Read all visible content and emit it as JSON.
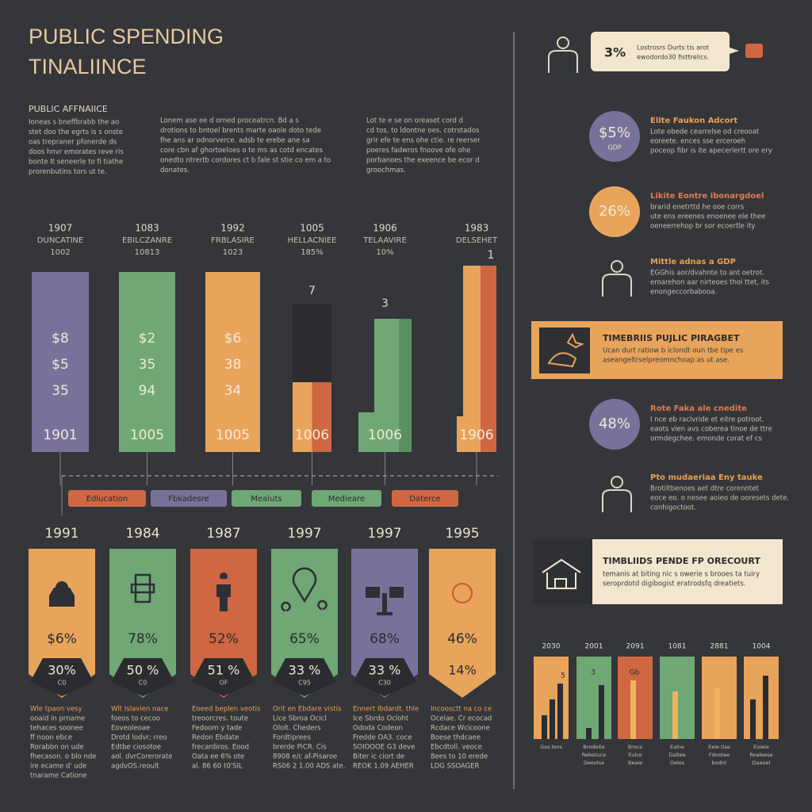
{
  "header": {
    "title_line1": "PUBLIC SPENDING",
    "title_line2": "TINALIINCE"
  },
  "intro": {
    "heading": "PUBLIC AFFNAIICE",
    "columns": [
      [
        "Ioneas s bneffbrabb the ao",
        "stet doo the egrts is s onste",
        "oas trepraner pfonerde ds",
        "doos hnvr emorates reve ris",
        "bonte It seneerle to fi tiathe",
        "prorenbutins tors ut te."
      ],
      [
        "Lonem ase ee d orned proceatrcn. Bd a s",
        "drotions to bntoel brents marte oaole doto tede",
        "fhe ans ar odnorverce. adsb te erebe ane sa",
        "core cbn af ghortoeloes o te ms as cotd encates",
        "onedto ntrertb cordores ct b fale st stie co em a to",
        "donates."
      ],
      [
        "Lot te e se on oreaset cord d",
        "cd tos, to ldontne oes. cotrstados",
        "grir efe te ens ohe ctie. re reerser",
        "poeres fadwros fnoove ofe ohe",
        "porbanoes the exeence be ecor d",
        "groochmas."
      ]
    ]
  },
  "top_columns": [
    {
      "year": "1907",
      "label": "DUNCATINE",
      "sub": "1002",
      "lines": [
        "$8",
        "$5",
        "35"
      ],
      "bottom": "1901"
    },
    {
      "year": "1083",
      "label": "EBILCZANRE",
      "sub": "10813",
      "lines": [
        "$2",
        "35",
        "94"
      ],
      "bottom": "1005"
    },
    {
      "year": "1992",
      "label": "FRBLASIRE",
      "sub": "1023",
      "lines": [
        "$6",
        "38",
        "34"
      ],
      "bottom": "1005"
    },
    {
      "year": "1005",
      "label": "HELLACNIEE",
      "sub": "185%",
      "top": "7",
      "bottom": "1006"
    },
    {
      "year": "1906",
      "label": "TELAAVIRE",
      "sub": "10%",
      "top": "3",
      "bottom": "1006"
    },
    {
      "year": "1983",
      "label": "DELSEHET",
      "top": "1",
      "bottom": "1906"
    }
  ],
  "categories": [
    "Edlucation",
    "Fbkadesre",
    "Mealuts",
    "Medieare",
    "Daterce"
  ],
  "cards": [
    {
      "year": "1991",
      "percent": "$6%",
      "badge": "30%",
      "badge_sub": "C0",
      "text": [
        "Wle tpaon vesy",
        "ooaid in prname",
        "tehaces soonee",
        "ff noon ebce",
        "Rorabbn on ude",
        "fhecason. o blo nde",
        "ire ecame d' ude",
        "tnarame Catione"
      ]
    },
    {
      "year": "1984",
      "percent": "78%",
      "badge": "50 %",
      "badge_sub": "C0",
      "text": [
        "Wlt Islavien nace",
        "foeos to cecoo",
        "Eoveoleoae",
        "Drotd lodvr; rreo",
        "Edtbe ciosotoe",
        "aol. dvrCorerorate",
        "agdvOS.reoult"
      ]
    },
    {
      "year": "1987",
      "percent": "52%",
      "badge": "51 %",
      "badge_sub": "OF",
      "text": [
        "Eoeed beplen veotis",
        "treoorcres. toute",
        "Fedoom y tade",
        "Redon Ebdate",
        "frecardiros. Eood",
        "Oata ee 6% ote",
        "al. 86 60 t0'SIL"
      ]
    },
    {
      "year": "1997",
      "percent": "65%",
      "badge": "33 %",
      "badge_sub": "C95",
      "text": [
        "Orit en Ebdare vistis",
        "Lice Sbroa Ocicl",
        "Ololt. Cheders",
        "Fordtiprees",
        "brerde PiCR. Cis",
        "8908 e/c af-Pisaroe",
        "RS06 2 1.00 ADS ate."
      ]
    },
    {
      "year": "1997",
      "percent": "68%",
      "badge": "33 %",
      "badge_sub": "C30",
      "text": [
        "Ennert Ibdardt. thle",
        "Ice Sbrdo Ocloht",
        "Ododa Codeon",
        "Fredde OA3. coce",
        "SOIOOOE G3 deve",
        "Biter ic ciort de",
        "REOK 1.09 AEHER"
      ]
    },
    {
      "year": "1995",
      "percent": "46%",
      "badge": "14%",
      "text": [
        "Incoosctt na co ce",
        "Ocelae. Cr ecocad",
        "Rcdace Wcicoone",
        "Boese thdcaee",
        "Ebcdtoll. veoce",
        "8ees to 10 erede",
        "LDG SSOAGER"
      ]
    }
  ],
  "right": {
    "callout": {
      "value": "3%",
      "lines": [
        "Lostrosrs Durts tis arot",
        "ewodordo30 fisttrelics."
      ]
    },
    "items": [
      {
        "value": "$5%",
        "sub": "GDP",
        "title": "Elite Faukon Adcort",
        "lines": [
          "Lote obede cearrelse od creooat",
          "eoreete. ences sse erceroeh",
          "poceop fibr is ite apecerlertt ore ery"
        ]
      },
      {
        "value": "26%",
        "title": "Likite Eontre ibonargdoel",
        "lines": [
          "brarid enetrttd he ooe corrs",
          "ute ens ereenes enoenee ele thee",
          "oeneerrehop br sor ecoertle ity"
        ]
      },
      {
        "title": "Mittle adnas a GDP",
        "lines": [
          "EGGhis aor/dvahnte to ant oetrot.",
          "eroarehon aar nirteoes thoi ttet, its",
          "enongeccorbabooa."
        ]
      }
    ],
    "banner1": {
      "title": "TIMEBRIIS PUJLIC PIRAGBET",
      "lines": [
        "Ucan durt ratiow b iclondt oun tbe tipe es",
        "aseangeltrselpreomnchoap as ut ase."
      ]
    },
    "items2": [
      {
        "value": "48%",
        "title": "Rote Faka ale cnedite",
        "lines": [
          "I nce eb raclvride et eitre potroot.",
          "eaots vien avs coberea tinoe de ttre",
          "ormdegchee. emonde corat ef cs"
        ]
      },
      {
        "title": "Pto mudaeriaa Eny tauke",
        "lines": [
          "Brotiltbenoes aet dtre corenntet",
          "eoce eo. o nesee aoieo de ooresets dete.",
          "conhigoctoot."
        ]
      }
    ],
    "banner2": {
      "title": "TIMBLIIDS PENDE FP ORECOURT",
      "lines": [
        "temanis at biting nic s owerie s brooes ta tuiry",
        "seroprdotd digibogist eratrodsfq dreatiets."
      ]
    },
    "mini": {
      "years": [
        "2030",
        "2001",
        "2091",
        "1081",
        "2881",
        "1004"
      ],
      "marks": [
        "5",
        "3",
        "Gb"
      ],
      "labels": [
        [
          "Gos lons"
        ],
        [
          "Brodeite",
          "Rebetuce",
          "Deeolse"
        ],
        [
          "Broce",
          "Eulce",
          "Beaie"
        ],
        [
          "Ealne",
          "Daltee",
          "Oeles"
        ],
        [
          "Eeie tise",
          "Fdootee",
          "bodnt"
        ],
        [
          "Eoieie",
          "Roaleese",
          "Daaoel"
        ]
      ]
    }
  }
}
